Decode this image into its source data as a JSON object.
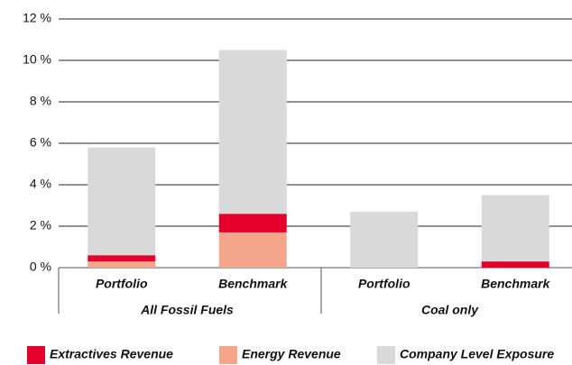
{
  "chart_data": {
    "type": "stacked_bar",
    "categories": [
      "Portfolio",
      "Benchmark",
      "Portfolio",
      "Benchmark"
    ],
    "groups": [
      {
        "label": "All Fossil Fuels",
        "categories": [
          0,
          1
        ]
      },
      {
        "label": "Coal only",
        "categories": [
          2,
          3
        ]
      }
    ],
    "series": [
      {
        "name": "Energy Revenue",
        "color": "#f4a58a",
        "values": [
          0.3,
          1.7,
          0,
          0
        ]
      },
      {
        "name": "Extractives Revenue",
        "color": "#e4002b",
        "values": [
          0.3,
          0.9,
          0,
          0.3
        ]
      },
      {
        "name": "Company Level Exposure",
        "color": "#d9d9d9",
        "values": [
          5.2,
          7.9,
          2.7,
          3.2
        ]
      }
    ],
    "ylim": [
      0,
      12
    ],
    "yticks": [
      {
        "value": 0,
        "label": "0 %"
      },
      {
        "value": 2,
        "label": "2 %"
      },
      {
        "value": 4,
        "label": "4 %"
      },
      {
        "value": 6,
        "label": "6 %"
      },
      {
        "value": 8,
        "label": "8 %"
      },
      {
        "value": 10,
        "label": "10 %"
      },
      {
        "value": 12,
        "label": "12 %"
      }
    ],
    "grid": true,
    "legend": "bottom"
  }
}
